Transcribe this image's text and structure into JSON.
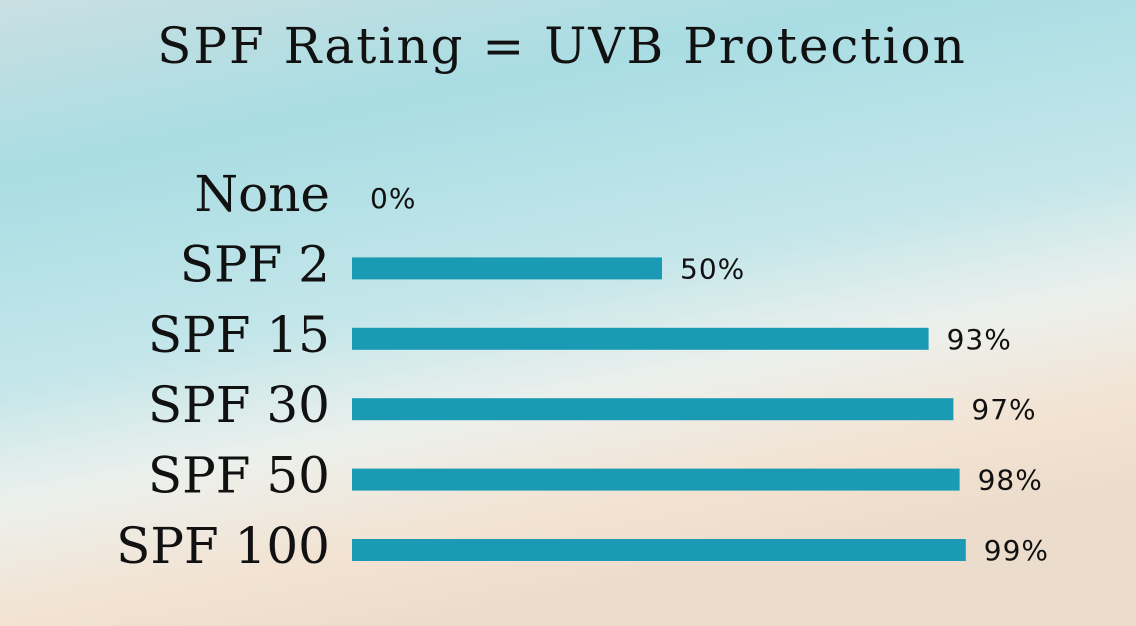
{
  "chart_data": {
    "type": "bar",
    "orientation": "horizontal",
    "title": "SPF Rating = UVB Protection",
    "categories": [
      "None",
      "SPF 2",
      "SPF 15",
      "SPF 30",
      "SPF 50",
      "SPF 100"
    ],
    "values": [
      0,
      50,
      93,
      97,
      98,
      99
    ],
    "value_labels": [
      "0%",
      "50%",
      "93%",
      "97%",
      "98%",
      "99%"
    ],
    "color": "#1a9bb3"
  }
}
